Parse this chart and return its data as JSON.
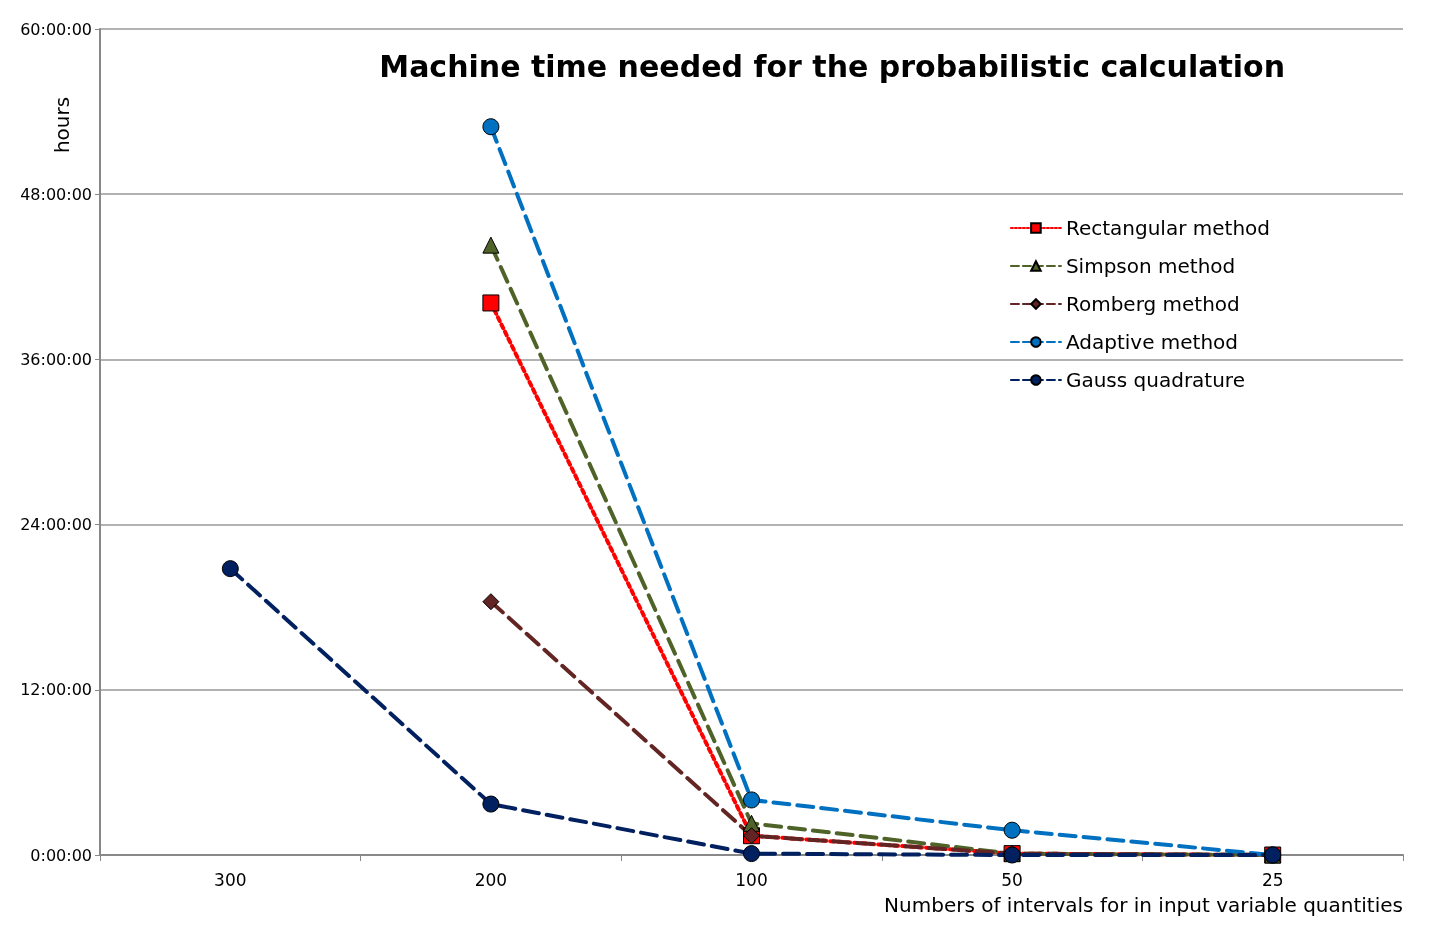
{
  "chart_data": {
    "type": "line",
    "title": "Machine time needed for the probabilistic calculation",
    "xlabel": "Numbers of intervals for in input variable quantities",
    "ylabel": "hours",
    "categories": [
      "300",
      "200",
      "100",
      "50",
      "25"
    ],
    "series": [
      {
        "name": "Rectangular method",
        "color": "#ff0000",
        "marker": "square",
        "line_style": "dotted",
        "values": [
          null,
          40.1,
          1.4,
          0.1,
          0
        ]
      },
      {
        "name": "Simpson method",
        "color": "#4f6228",
        "marker": "triangle",
        "line_style": "dashed",
        "values": [
          null,
          44.3,
          2.3,
          0.1,
          0
        ]
      },
      {
        "name": "Romberg method",
        "color": "#632523",
        "marker": "diamond",
        "line_style": "dashed",
        "values": [
          null,
          18.4,
          1.4,
          0.1,
          0
        ]
      },
      {
        "name": "Adaptive method",
        "color": "#0070c0",
        "marker": "circle",
        "line_style": "dashed",
        "values": [
          null,
          52.9,
          4.0,
          1.8,
          0
        ]
      },
      {
        "name": "Gauss quadrature",
        "color": "#002060",
        "marker": "circle",
        "line_style": "dashed",
        "values": [
          20.8,
          3.7,
          0.1,
          0,
          0
        ]
      }
    ],
    "ylim": [
      0,
      60
    ],
    "yticks": [
      {
        "value": 0,
        "label": "0:00:00"
      },
      {
        "value": 12,
        "label": "12:00:00"
      },
      {
        "value": 24,
        "label": "24:00:00"
      },
      {
        "value": 36,
        "label": "36:00:00"
      },
      {
        "value": 48,
        "label": "48:00:00"
      },
      {
        "value": 60,
        "label": "60:00:00"
      }
    ],
    "grid": "y",
    "legend": "top right"
  }
}
